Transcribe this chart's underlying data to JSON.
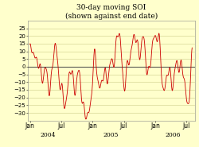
{
  "title_line1": "30-day moving SOI",
  "title_line2": "(shown against end date)",
  "bg_color": "#ffffcc",
  "line_color": "#cc0000",
  "zero_line_color": "#444444",
  "grid_color": "#cccc88",
  "ylim": [
    -35,
    30
  ],
  "yticks": [
    -30,
    -25,
    -20,
    -15,
    -10,
    -5,
    0,
    5,
    10,
    15,
    20,
    25
  ],
  "xlabel_fontsize": 5.5,
  "ylabel_fontsize": 5.0,
  "title_fontsize": 6.5,
  "year_fontsize": 5.5
}
